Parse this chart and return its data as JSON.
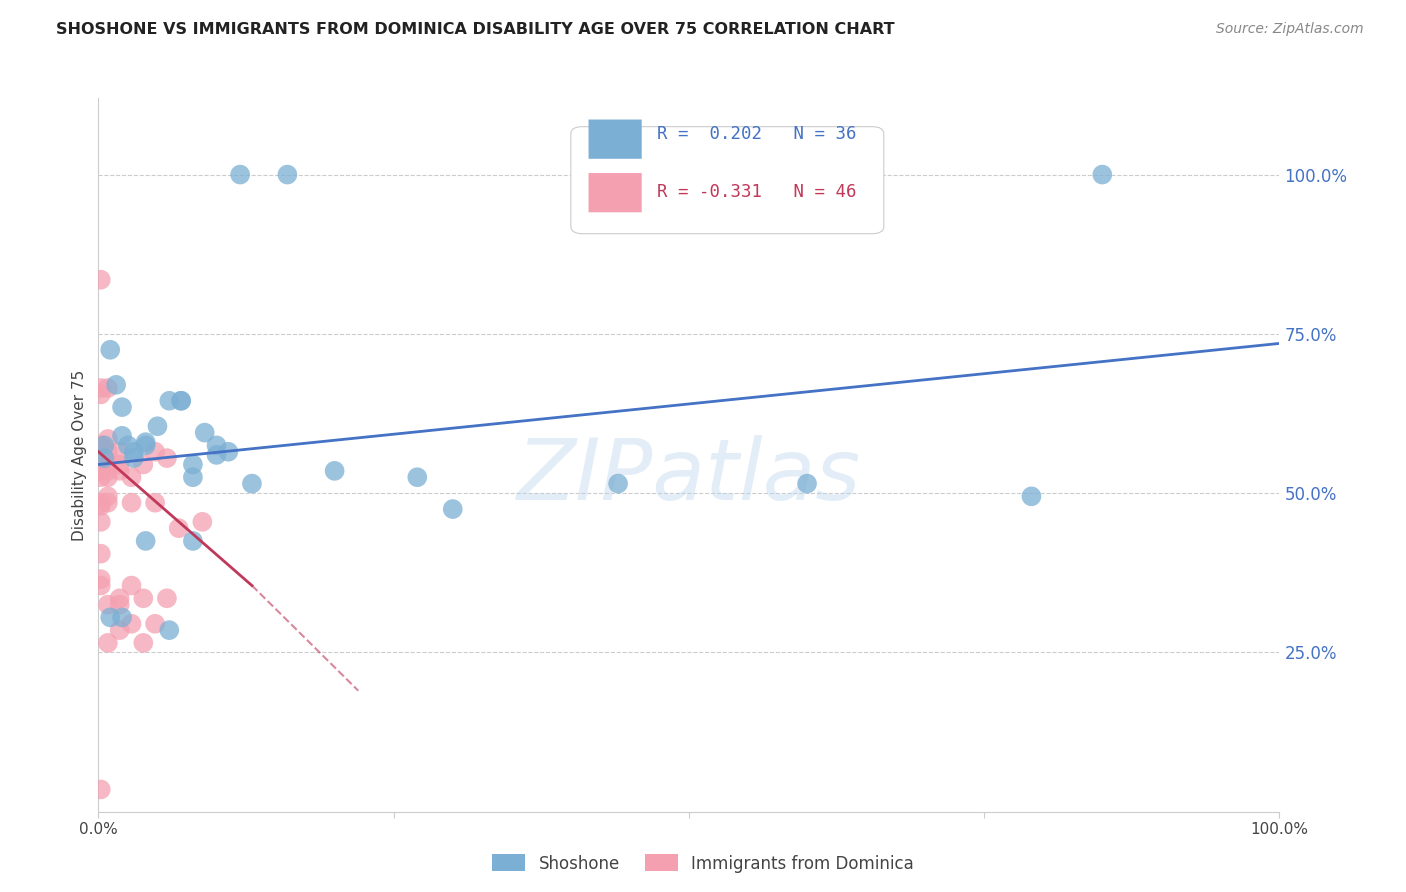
{
  "title": "SHOSHONE VS IMMIGRANTS FROM DOMINICA DISABILITY AGE OVER 75 CORRELATION CHART",
  "source": "Source: ZipAtlas.com",
  "ylabel": "Disability Age Over 75",
  "ytick_values": [
    0.25,
    0.5,
    0.75,
    1.0
  ],
  "ytick_labels": [
    "25.0%",
    "50.0%",
    "75.0%",
    "100.0%"
  ],
  "xlim": [
    0.0,
    1.0
  ],
  "ylim": [
    0.0,
    1.12
  ],
  "legend_r1": "R =  0.202",
  "legend_n1": "N = 36",
  "legend_r2": "R = -0.331",
  "legend_n2": "N = 46",
  "shoshone_color": "#7BAFD4",
  "dominica_color": "#F4A0B0",
  "shoshone_line_color": "#4472C4",
  "dominica_line_color": "#C0385A",
  "shoshone_x": [
    0.12,
    0.16,
    0.01,
    0.015,
    0.02,
    0.02,
    0.025,
    0.03,
    0.03,
    0.04,
    0.04,
    0.05,
    0.06,
    0.07,
    0.07,
    0.08,
    0.08,
    0.09,
    0.1,
    0.1,
    0.11,
    0.13,
    0.2,
    0.27,
    0.3,
    0.44,
    0.6,
    0.79,
    0.85,
    0.01,
    0.02,
    0.04,
    0.06,
    0.08,
    0.005,
    0.005
  ],
  "shoshone_y": [
    1.0,
    1.0,
    0.725,
    0.67,
    0.635,
    0.59,
    0.575,
    0.565,
    0.555,
    0.575,
    0.58,
    0.605,
    0.645,
    0.645,
    0.645,
    0.545,
    0.425,
    0.595,
    0.575,
    0.56,
    0.565,
    0.515,
    0.535,
    0.525,
    0.475,
    0.515,
    0.515,
    0.495,
    1.0,
    0.305,
    0.305,
    0.425,
    0.285,
    0.525,
    0.575,
    0.555
  ],
  "dominica_x": [
    0.002,
    0.002,
    0.002,
    0.002,
    0.002,
    0.002,
    0.002,
    0.002,
    0.002,
    0.002,
    0.002,
    0.002,
    0.002,
    0.002,
    0.002,
    0.002,
    0.008,
    0.008,
    0.008,
    0.008,
    0.008,
    0.008,
    0.008,
    0.008,
    0.008,
    0.008,
    0.018,
    0.018,
    0.018,
    0.018,
    0.018,
    0.018,
    0.028,
    0.028,
    0.028,
    0.028,
    0.038,
    0.038,
    0.038,
    0.048,
    0.048,
    0.048,
    0.058,
    0.058,
    0.068,
    0.088
  ],
  "dominica_y": [
    0.835,
    0.665,
    0.655,
    0.575,
    0.575,
    0.555,
    0.545,
    0.535,
    0.525,
    0.485,
    0.48,
    0.455,
    0.405,
    0.365,
    0.355,
    0.035,
    0.665,
    0.585,
    0.565,
    0.545,
    0.535,
    0.525,
    0.495,
    0.485,
    0.325,
    0.265,
    0.565,
    0.545,
    0.535,
    0.335,
    0.325,
    0.285,
    0.525,
    0.485,
    0.355,
    0.295,
    0.545,
    0.335,
    0.265,
    0.565,
    0.485,
    0.295,
    0.555,
    0.335,
    0.445,
    0.455
  ],
  "shoshone_trend_x0": 0.0,
  "shoshone_trend_x1": 1.0,
  "shoshone_trend_y0": 0.545,
  "shoshone_trend_y1": 0.735,
  "dominica_trend_x0": 0.0,
  "dominica_trend_solid_x1": 0.13,
  "dominica_trend_dashed_x1": 0.22,
  "dominica_trend_y0": 0.565,
  "dominica_trend_y_solid1": 0.355,
  "dominica_trend_y_dashed1": 0.19
}
